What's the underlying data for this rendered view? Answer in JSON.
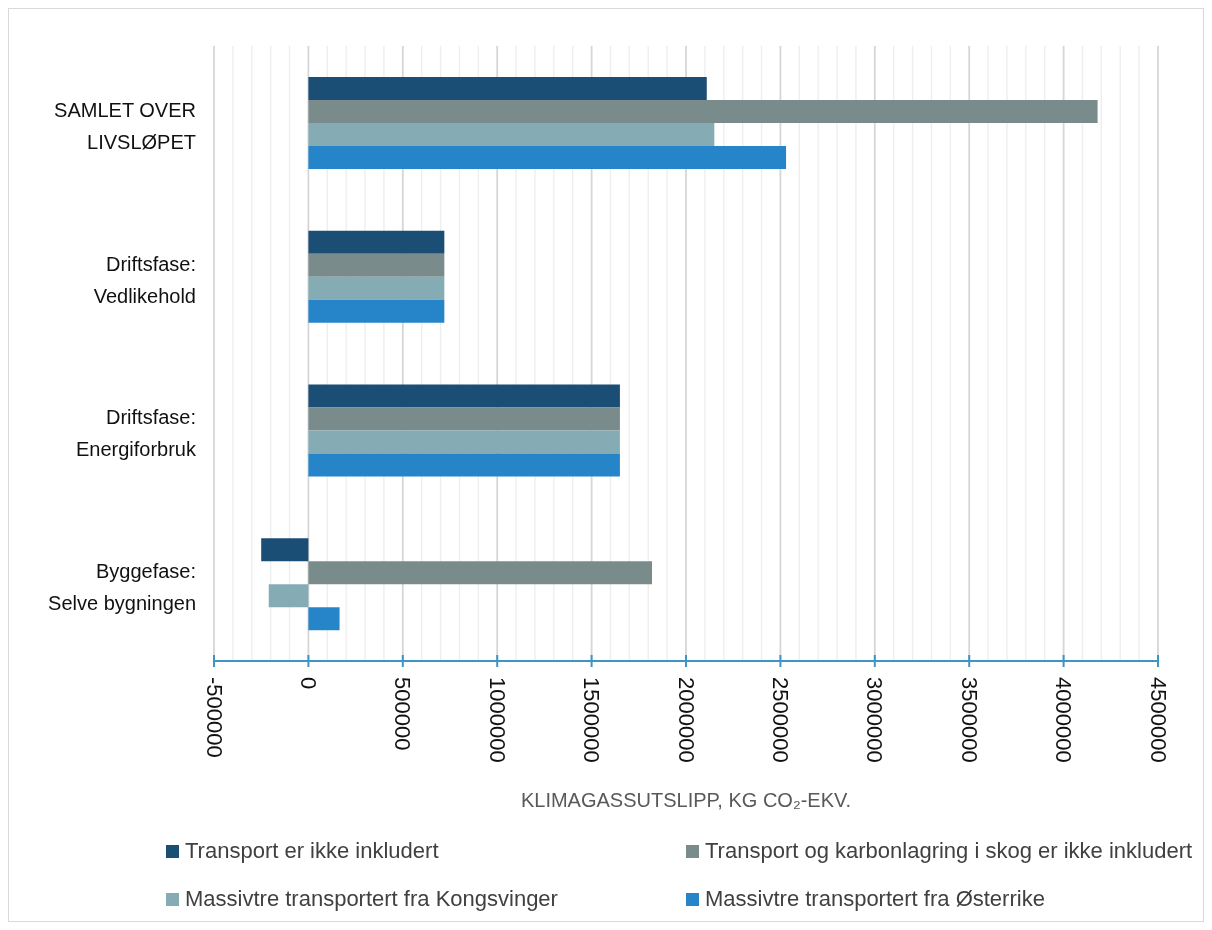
{
  "chart_data": {
    "type": "bar",
    "orientation": "horizontal",
    "categories": [
      "SAMLET OVER LIVSLØPET",
      "Driftsfase: Vedlikehold",
      "Driftsfase: Energiforbruk",
      "Byggefase: Selve bygningen"
    ],
    "series": [
      {
        "name": "Transport er ikke inkludert",
        "color": "#1a4e75",
        "values": [
          2110000,
          720000,
          1650000,
          -250000
        ]
      },
      {
        "name": "Transport og karbonlagring i skog er ikke inkludert",
        "color": "#7a8b8c",
        "values": [
          4180000,
          720000,
          1650000,
          1820000
        ]
      },
      {
        "name": "Massivtre transportert fra Kongsvinger",
        "color": "#85acb5",
        "values": [
          2150000,
          720000,
          1650000,
          -210000
        ]
      },
      {
        "name": "Massivtre transportert fra Østerrike",
        "color": "#2684c8",
        "values": [
          2530000,
          720000,
          1650000,
          165000
        ]
      }
    ],
    "xlabel": "KLIMAGASSUTSLIPP, KG CO₂-EKV.",
    "xlim": [
      -500000,
      4500000
    ],
    "xticks": [
      -500000,
      {
        "value": -400000,
        "label": null
      },
      {
        "value": -300000,
        "label": null
      },
      {
        "value": -200000,
        "label": null
      },
      {
        "value": -100000,
        "label": null
      },
      0,
      {
        "value": 100000,
        "label": null
      },
      {
        "value": 200000,
        "label": null
      },
      {
        "value": 300000,
        "label": null
      },
      {
        "value": 400000,
        "label": null
      },
      500000,
      {
        "value": 600000,
        "label": null
      },
      {
        "value": 700000,
        "label": null
      },
      {
        "value": 800000,
        "label": null
      },
      {
        "value": 900000,
        "label": null
      },
      1000000,
      {
        "value": 1100000,
        "label": null
      },
      {
        "value": 1200000,
        "label": null
      },
      {
        "value": 1300000,
        "label": null
      },
      {
        "value": 1400000,
        "label": null
      },
      1500000,
      {
        "value": 1600000,
        "label": null
      },
      {
        "value": 1700000,
        "label": null
      },
      {
        "value": 1800000,
        "label": null
      },
      {
        "value": 1900000,
        "label": null
      },
      2000000,
      {
        "value": 2100000,
        "label": null
      },
      {
        "value": 2200000,
        "label": null
      },
      {
        "value": 2300000,
        "label": null
      },
      {
        "value": 2400000,
        "label": null
      },
      2500000,
      {
        "value": 2600000,
        "label": null
      },
      {
        "value": 2700000,
        "label": null
      },
      {
        "value": 2800000,
        "label": null
      },
      {
        "value": 2900000,
        "label": null
      },
      3000000,
      {
        "value": 3100000,
        "label": null
      },
      {
        "value": 3200000,
        "label": null
      },
      {
        "value": 3300000,
        "label": null
      },
      {
        "value": 3400000,
        "label": null
      },
      3500000,
      {
        "value": 3600000,
        "label": null
      },
      {
        "value": 3700000,
        "label": null
      },
      {
        "value": 3800000,
        "label": null
      },
      {
        "value": 3900000,
        "label": null
      },
      4000000,
      {
        "value": 4100000,
        "label": null
      },
      {
        "value": 4200000,
        "label": null
      },
      {
        "value": 4300000,
        "label": null
      },
      {
        "value": 4400000,
        "label": null
      },
      4500000
    ],
    "grid": "x",
    "legend": "bottom"
  }
}
